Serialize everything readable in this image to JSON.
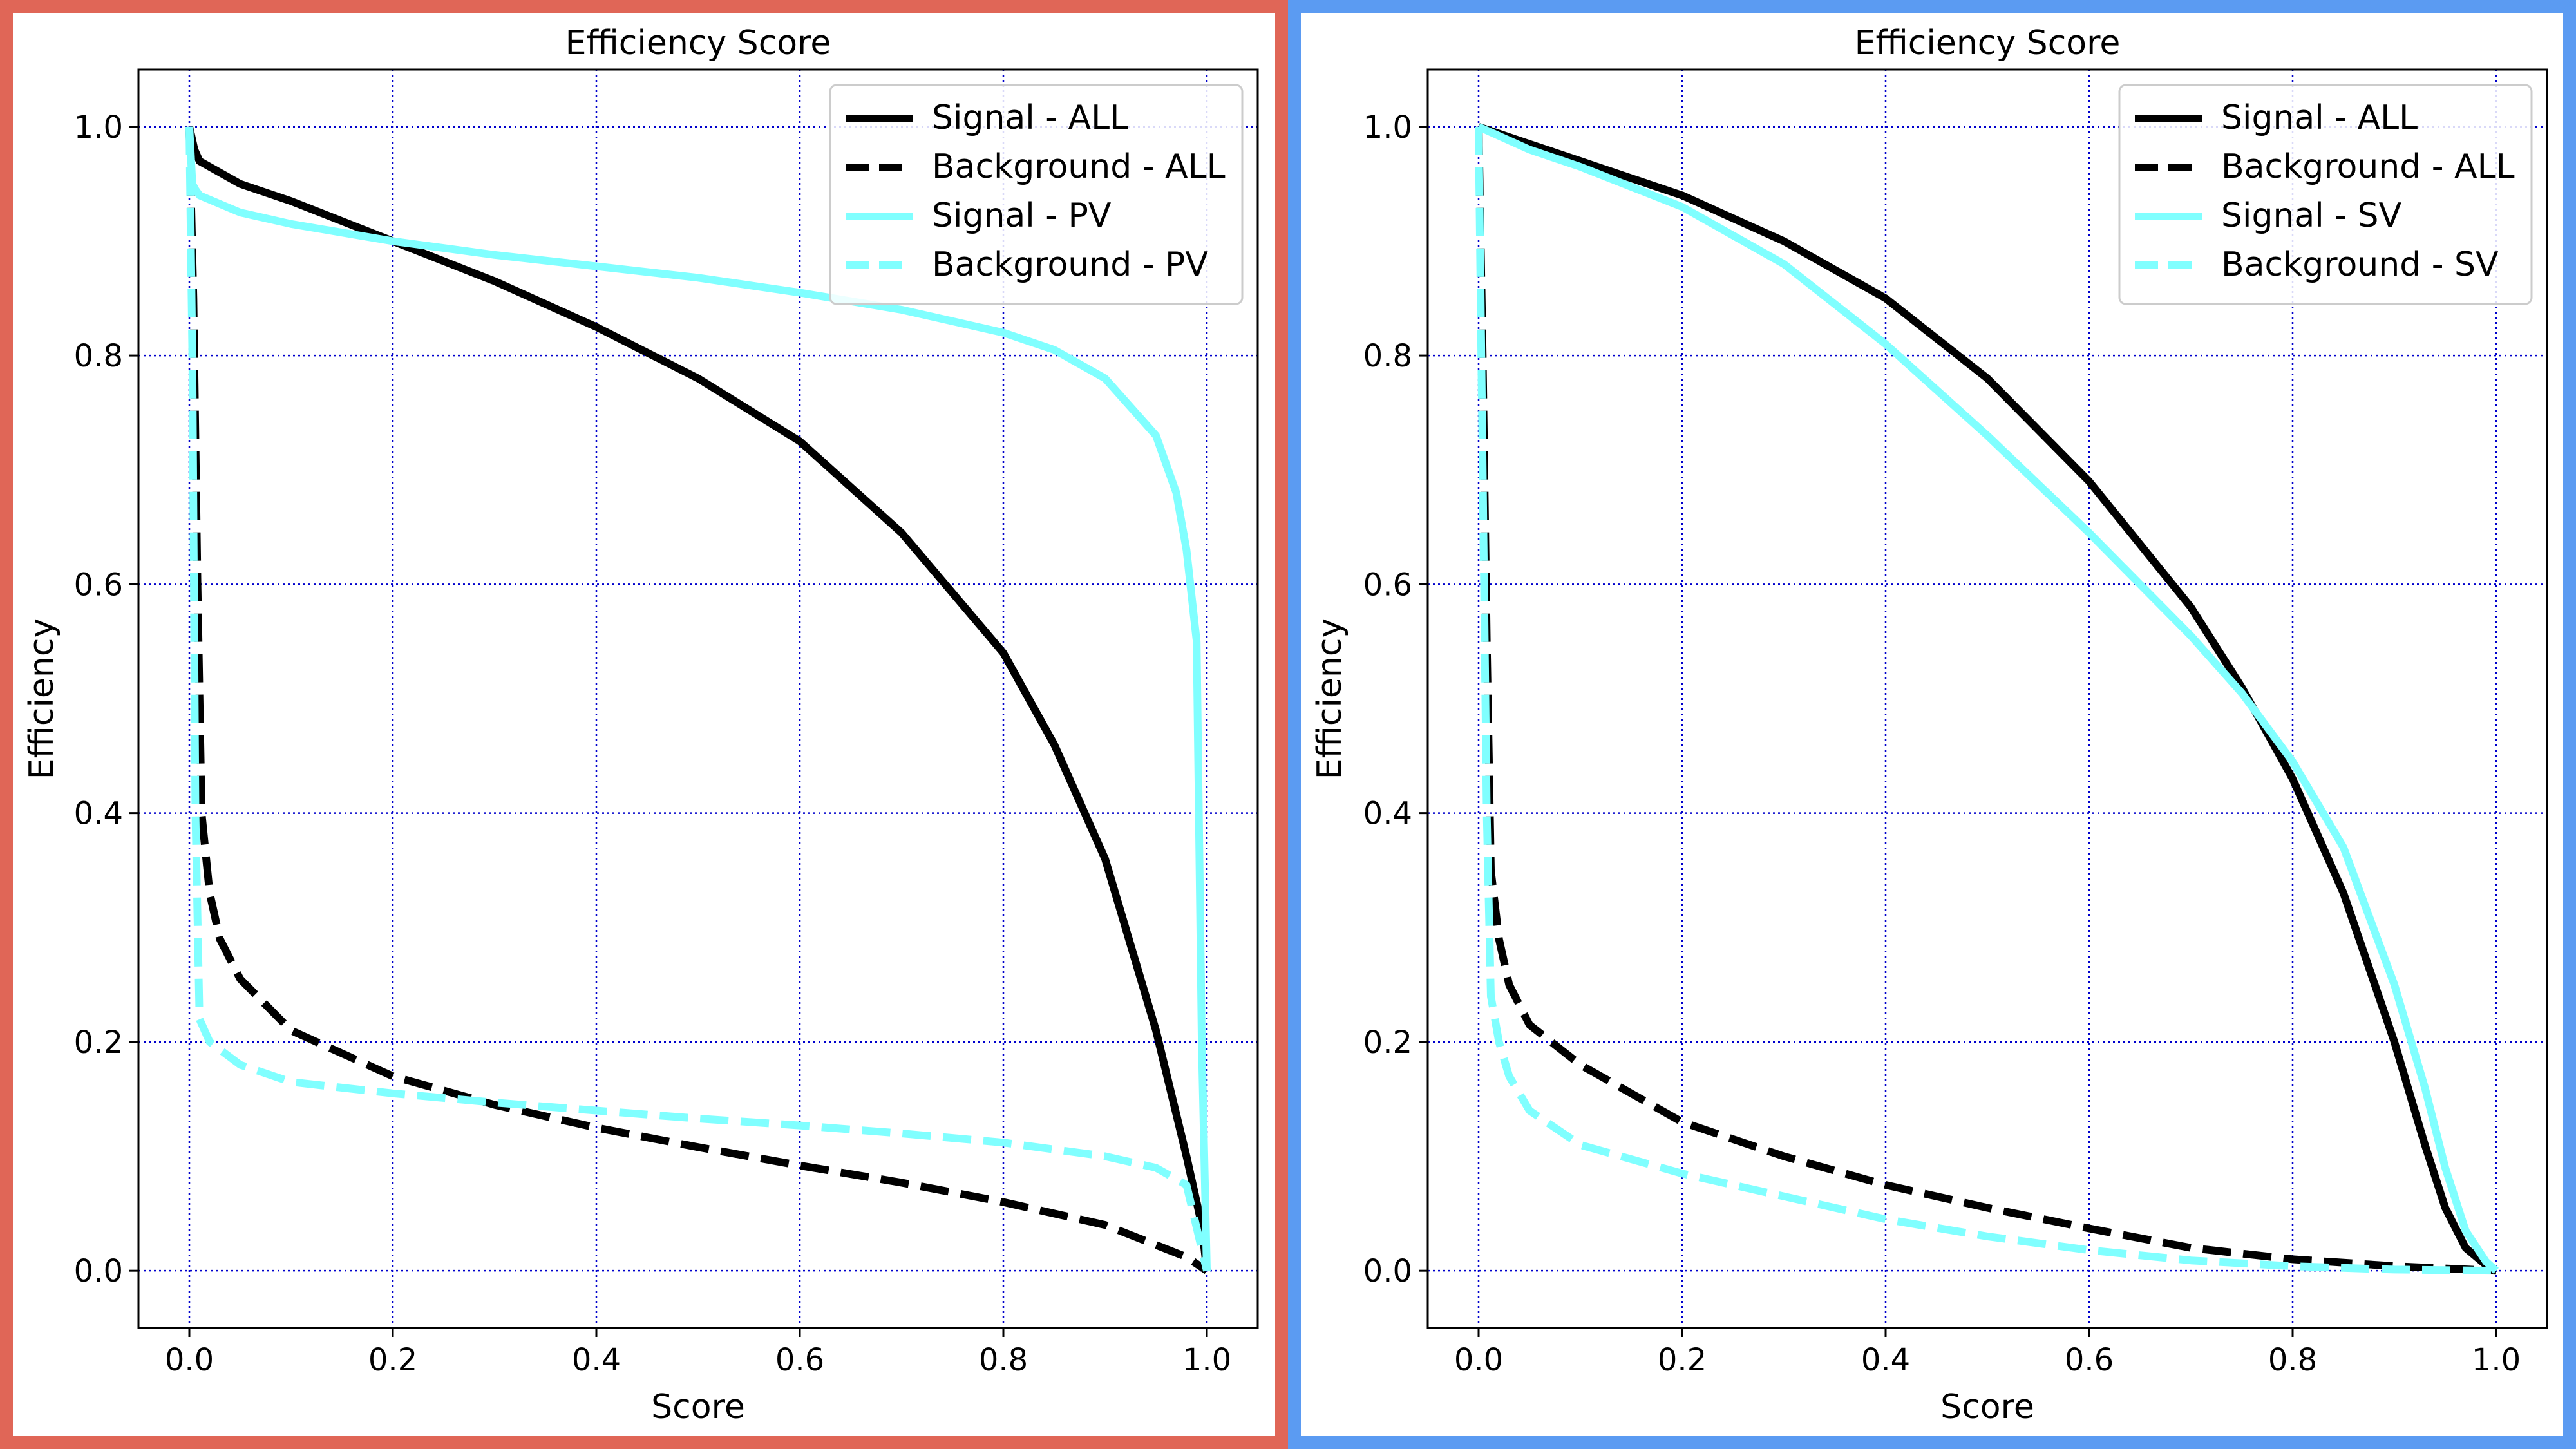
{
  "panels": [
    {
      "border_color": "#E06657",
      "legend": [
        "Signal - ALL",
        "Background - ALL",
        "Signal - PV",
        "Background - PV"
      ]
    },
    {
      "border_color": "#5B9BF2",
      "legend": [
        "Signal - ALL",
        "Background - ALL",
        "Signal - SV",
        "Background - SV"
      ]
    }
  ],
  "chart_data": [
    {
      "type": "line",
      "title": "Efficiency Score",
      "xlabel": "Score",
      "ylabel": "Efficiency",
      "xlim": [
        -0.05,
        1.05
      ],
      "ylim": [
        -0.05,
        1.05
      ],
      "xticks": [
        "0.0",
        "0.2",
        "0.4",
        "0.6",
        "0.8",
        "1.0"
      ],
      "yticks": [
        "0.0",
        "0.2",
        "0.4",
        "0.6",
        "0.8",
        "1.0"
      ],
      "grid": true,
      "legend_position": "top-right",
      "series": [
        {
          "name": "Signal - ALL",
          "color": "#000000",
          "style": "solid",
          "x": [
            0.0,
            0.005,
            0.01,
            0.05,
            0.1,
            0.2,
            0.3,
            0.4,
            0.5,
            0.6,
            0.7,
            0.8,
            0.85,
            0.9,
            0.95,
            0.98,
            0.995,
            1.0
          ],
          "y": [
            1.0,
            0.98,
            0.97,
            0.95,
            0.935,
            0.9,
            0.865,
            0.825,
            0.78,
            0.725,
            0.645,
            0.54,
            0.46,
            0.36,
            0.21,
            0.1,
            0.04,
            0.0
          ]
        },
        {
          "name": "Background - ALL",
          "color": "#000000",
          "style": "dashed",
          "x": [
            0.0,
            0.004,
            0.008,
            0.012,
            0.02,
            0.03,
            0.05,
            0.1,
            0.2,
            0.3,
            0.4,
            0.5,
            0.6,
            0.7,
            0.8,
            0.9,
            0.98,
            1.0
          ],
          "y": [
            1.0,
            0.85,
            0.6,
            0.4,
            0.33,
            0.29,
            0.255,
            0.21,
            0.17,
            0.145,
            0.125,
            0.108,
            0.092,
            0.077,
            0.06,
            0.04,
            0.012,
            0.0
          ]
        },
        {
          "name": "Signal - PV",
          "color": "#80FFFF",
          "style": "solid",
          "x": [
            0.0,
            0.003,
            0.006,
            0.01,
            0.05,
            0.1,
            0.2,
            0.3,
            0.4,
            0.5,
            0.6,
            0.7,
            0.8,
            0.85,
            0.9,
            0.95,
            0.97,
            0.98,
            0.99,
            0.995,
            1.0
          ],
          "y": [
            1.0,
            0.95,
            0.945,
            0.94,
            0.925,
            0.915,
            0.9,
            0.888,
            0.878,
            0.868,
            0.855,
            0.84,
            0.82,
            0.805,
            0.78,
            0.73,
            0.68,
            0.63,
            0.55,
            0.2,
            0.0
          ]
        },
        {
          "name": "Background - PV",
          "color": "#80FFFF",
          "style": "dashed",
          "x": [
            0.0,
            0.003,
            0.006,
            0.01,
            0.02,
            0.05,
            0.1,
            0.2,
            0.3,
            0.4,
            0.5,
            0.6,
            0.7,
            0.8,
            0.9,
            0.95,
            0.98,
            1.0
          ],
          "y": [
            1.0,
            0.8,
            0.4,
            0.22,
            0.2,
            0.18,
            0.165,
            0.155,
            0.147,
            0.14,
            0.133,
            0.127,
            0.12,
            0.112,
            0.1,
            0.09,
            0.075,
            0.0
          ]
        }
      ]
    },
    {
      "type": "line",
      "title": "Efficiency Score",
      "xlabel": "Score",
      "ylabel": "Efficiency",
      "xlim": [
        -0.05,
        1.05
      ],
      "ylim": [
        -0.05,
        1.05
      ],
      "xticks": [
        "0.0",
        "0.2",
        "0.4",
        "0.6",
        "0.8",
        "1.0"
      ],
      "yticks": [
        "0.0",
        "0.2",
        "0.4",
        "0.6",
        "0.8",
        "1.0"
      ],
      "grid": true,
      "legend_position": "top-right",
      "series": [
        {
          "name": "Signal - ALL",
          "color": "#000000",
          "style": "solid",
          "x": [
            0.0,
            0.05,
            0.1,
            0.2,
            0.3,
            0.4,
            0.5,
            0.6,
            0.7,
            0.75,
            0.8,
            0.85,
            0.9,
            0.93,
            0.95,
            0.97,
            0.99,
            1.0
          ],
          "y": [
            1.0,
            0.985,
            0.97,
            0.94,
            0.9,
            0.85,
            0.78,
            0.69,
            0.58,
            0.51,
            0.43,
            0.33,
            0.2,
            0.11,
            0.055,
            0.02,
            0.005,
            0.0
          ]
        },
        {
          "name": "Background - ALL",
          "color": "#000000",
          "style": "dashed",
          "x": [
            0.0,
            0.004,
            0.008,
            0.012,
            0.02,
            0.03,
            0.05,
            0.1,
            0.2,
            0.3,
            0.4,
            0.5,
            0.6,
            0.7,
            0.8,
            0.9,
            1.0
          ],
          "y": [
            1.0,
            0.8,
            0.55,
            0.35,
            0.29,
            0.25,
            0.215,
            0.18,
            0.13,
            0.1,
            0.075,
            0.055,
            0.037,
            0.02,
            0.01,
            0.004,
            0.0
          ]
        },
        {
          "name": "Signal - SV",
          "color": "#80FFFF",
          "style": "solid",
          "x": [
            0.0,
            0.05,
            0.1,
            0.2,
            0.3,
            0.4,
            0.5,
            0.6,
            0.7,
            0.75,
            0.8,
            0.85,
            0.9,
            0.93,
            0.95,
            0.97,
            0.99,
            1.0
          ],
          "y": [
            1.0,
            0.98,
            0.965,
            0.93,
            0.88,
            0.81,
            0.73,
            0.645,
            0.555,
            0.505,
            0.445,
            0.37,
            0.25,
            0.16,
            0.09,
            0.035,
            0.008,
            0.0
          ]
        },
        {
          "name": "Background - SV",
          "color": "#80FFFF",
          "style": "dashed",
          "x": [
            0.0,
            0.004,
            0.008,
            0.012,
            0.02,
            0.03,
            0.05,
            0.1,
            0.2,
            0.3,
            0.4,
            0.5,
            0.6,
            0.7,
            0.8,
            0.9,
            1.0
          ],
          "y": [
            1.0,
            0.7,
            0.4,
            0.24,
            0.2,
            0.17,
            0.14,
            0.11,
            0.085,
            0.065,
            0.045,
            0.03,
            0.018,
            0.009,
            0.004,
            0.001,
            0.0
          ]
        }
      ]
    }
  ]
}
